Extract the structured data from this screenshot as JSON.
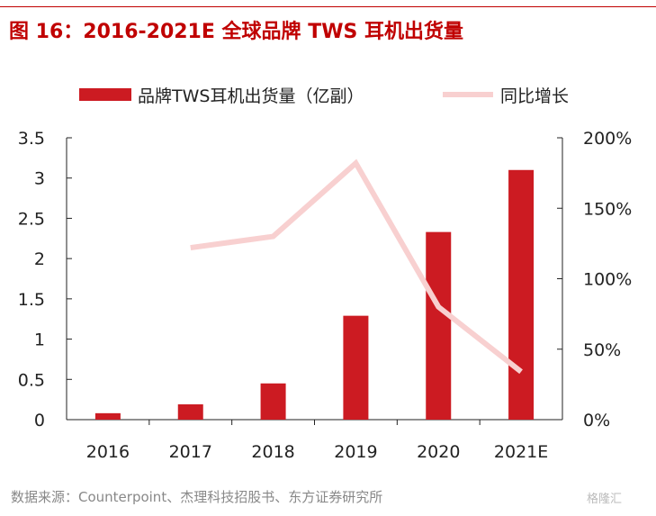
{
  "title": "图 16：2016-2021E 全球品牌 TWS 耳机出货量",
  "source": "数据来源：Counterpoint、杰理科技招股书、东方证券研究所",
  "watermark": "格隆汇",
  "chart_data": {
    "type": "bar+line",
    "categories": [
      "2016",
      "2017",
      "2018",
      "2019",
      "2020",
      "2021E"
    ],
    "series": [
      {
        "name": "品牌TWS耳机出货量（亿副）",
        "type": "bar",
        "axis": "left",
        "color": "#cc1b22",
        "values": [
          0.08,
          0.19,
          0.45,
          1.29,
          2.33,
          3.1
        ]
      },
      {
        "name": "同比增长",
        "type": "line",
        "axis": "right",
        "color": "#f8d0d0",
        "values": [
          null,
          1.22,
          1.3,
          1.82,
          0.8,
          0.34
        ]
      }
    ],
    "left_axis": {
      "min": 0,
      "max": 3.5,
      "ticks": [
        "0",
        "0.5",
        "1",
        "1.5",
        "2",
        "2.5",
        "3",
        "3.5"
      ]
    },
    "right_axis": {
      "min": 0,
      "max": 2,
      "ticks": [
        "0%",
        "50%",
        "100%",
        "150%",
        "200%"
      ]
    },
    "legend": "top",
    "grid": false
  }
}
